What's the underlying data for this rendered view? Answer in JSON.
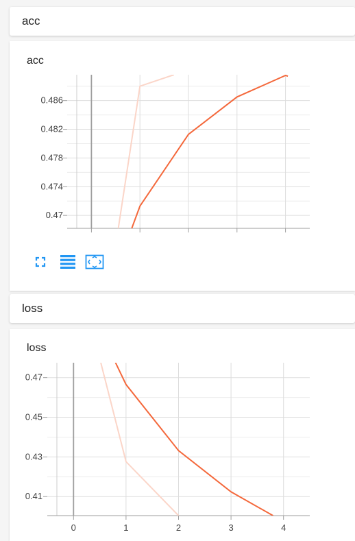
{
  "sections": [
    {
      "header": "acc"
    },
    {
      "header": "loss"
    }
  ],
  "acc_card": {
    "title": "acc",
    "buttons": [
      {
        "name": "fullscreen-icon"
      },
      {
        "name": "data-list-icon"
      },
      {
        "name": "fit-domain-icon"
      }
    ]
  },
  "loss_card": {
    "title": "loss"
  },
  "colors": {
    "series": "#f4683b",
    "series_light": "#fbd5c8",
    "axis": "#9e9e9e",
    "grid": "#dddddd",
    "icon": "#2196f3"
  },
  "chart_data": [
    {
      "type": "line",
      "title": "acc",
      "x_ticks": [
        0,
        1,
        2,
        3,
        4
      ],
      "show_x_tick_labels": false,
      "y_ticks": [
        "0.47",
        "0.474",
        "0.478",
        "0.482",
        "0.486"
      ],
      "xlim": [
        -0.5,
        4.5
      ],
      "ylim": [
        0.4682,
        0.4896
      ],
      "grid": true,
      "series": [
        {
          "style": "smoothed",
          "x": [
            0.82,
            1.0,
            2.0,
            3.0,
            4.0,
            4.05
          ],
          "y": [
            0.468,
            0.4713,
            0.4813,
            0.4865,
            0.4895,
            0.4894
          ]
        },
        {
          "style": "raw",
          "x": [
            0.55,
            1.0,
            1.7
          ],
          "y": [
            0.468,
            0.488,
            0.4896
          ]
        }
      ]
    },
    {
      "type": "line",
      "title": "loss",
      "x_ticks": [
        0,
        1,
        2,
        3,
        4
      ],
      "x_tick_labels": [
        "0",
        "1",
        "2",
        "3",
        "4"
      ],
      "y_ticks": [
        "0.41",
        "0.43",
        "0.45",
        "0.47"
      ],
      "xlim": [
        -0.5,
        4.5
      ],
      "ylim": [
        0.4004,
        0.4775
      ],
      "grid": true,
      "series": [
        {
          "style": "smoothed",
          "x": [
            0.8,
            1.0,
            2.0,
            3.0,
            3.8
          ],
          "y": [
            0.4775,
            0.4665,
            0.4332,
            0.4124,
            0.4004
          ]
        },
        {
          "style": "raw",
          "x": [
            0.52,
            1.0,
            2.0
          ],
          "y": [
            0.4775,
            0.4276,
            0.4004
          ]
        }
      ]
    }
  ]
}
